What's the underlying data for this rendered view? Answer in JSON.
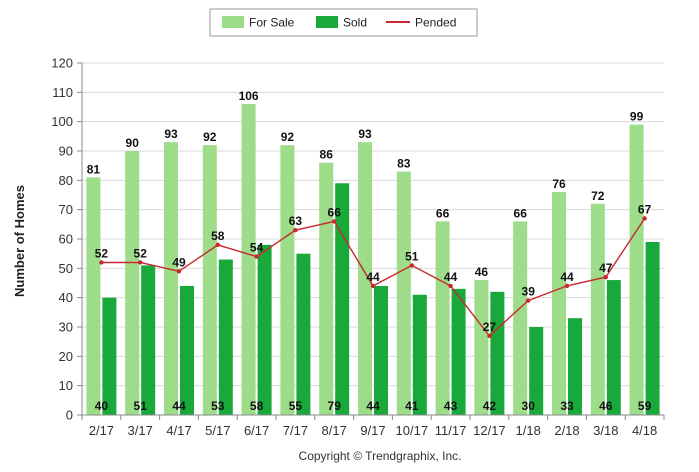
{
  "chart_data": {
    "type": "bar",
    "title": "",
    "xlabel": "",
    "ylabel": "Number of Homes",
    "ylim": [
      0,
      120
    ],
    "yticks": [
      0,
      10,
      20,
      30,
      40,
      50,
      60,
      70,
      80,
      90,
      100,
      110,
      120
    ],
    "grid": true,
    "legend_position": "top-center",
    "categories": [
      "2/17",
      "3/17",
      "4/17",
      "5/17",
      "6/17",
      "7/17",
      "8/17",
      "9/17",
      "10/17",
      "11/17",
      "12/17",
      "1/18",
      "2/18",
      "3/18",
      "4/18"
    ],
    "series": [
      {
        "name": "For Sale",
        "type": "bar",
        "color": "#9ddc88",
        "values": [
          81,
          90,
          93,
          92,
          106,
          92,
          86,
          93,
          83,
          66,
          46,
          66,
          76,
          72,
          99
        ]
      },
      {
        "name": "Sold",
        "type": "bar",
        "color": "#19a83a",
        "values": [
          40,
          51,
          44,
          53,
          58,
          55,
          79,
          44,
          41,
          43,
          42,
          30,
          33,
          46,
          59
        ]
      },
      {
        "name": "Pended",
        "type": "line",
        "color": "#c8282d",
        "values": [
          52,
          52,
          49,
          58,
          54,
          63,
          66,
          44,
          51,
          44,
          27,
          39,
          44,
          47,
          67
        ]
      }
    ]
  },
  "footer": {
    "copyright": "Copyright © Trendgraphix, Inc."
  }
}
